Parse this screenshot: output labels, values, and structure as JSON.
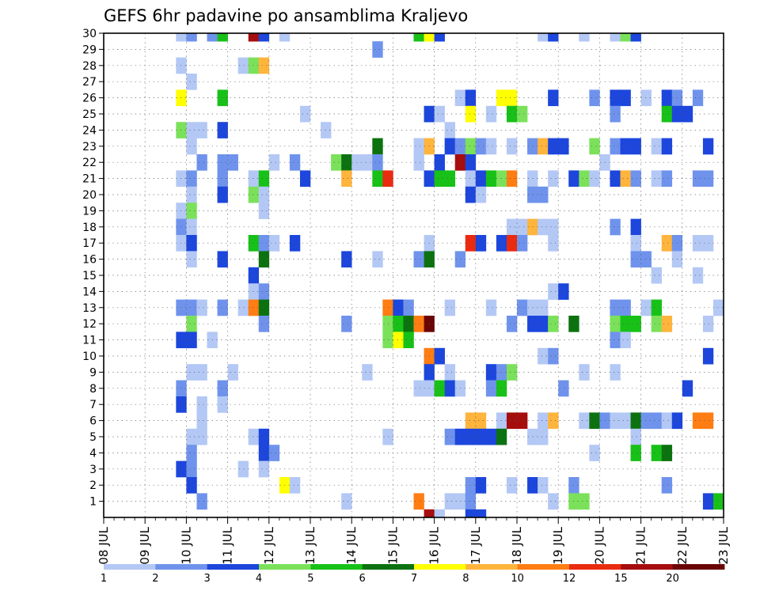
{
  "chart_data": {
    "type": "heatmap",
    "title": "GEFS 6hr padavine po ansamblima Kraljevo",
    "xlabel": "",
    "ylabel": "",
    "x_ticks": [
      "08 JUL",
      "09 JUL",
      "10 JUL",
      "11 JUL",
      "12 JUL",
      "13 JUL",
      "14 JUL",
      "15 JUL",
      "16 JUL",
      "17 JUL",
      "18 JUL",
      "19 JUL",
      "20 JUL",
      "21 JUL",
      "22 JUL",
      "23 JUL"
    ],
    "x_range_days": [
      8,
      23
    ],
    "x_step_hours": 6,
    "y_ticks": [
      1,
      2,
      3,
      4,
      5,
      6,
      7,
      8,
      9,
      10,
      11,
      12,
      13,
      14,
      15,
      16,
      17,
      18,
      19,
      20,
      21,
      22,
      23,
      24,
      25,
      26,
      27,
      28,
      29,
      30
    ],
    "y_range": [
      0,
      30
    ],
    "grid": true,
    "legend": {
      "position": "bottom",
      "labels": [
        "1",
        "2",
        "3",
        "4",
        "5",
        "6",
        "7",
        "8",
        "10",
        "12",
        "15",
        "20"
      ],
      "colors": [
        "#b4c8f5",
        "#6f93ec",
        "#1c46dc",
        "#7be15a",
        "#17c117",
        "#0c7210",
        "#ffff00",
        "#ffb43c",
        "#ff7d13",
        "#ea2b10",
        "#a60d0d",
        "#6b0505"
      ]
    },
    "cells_note": "each cell: [member (row), day-of-July at start of 6h step, category index 1..12 (see legend.labels)]",
    "cells": [
      [
        30,
        9.75,
        1
      ],
      [
        30,
        10,
        2
      ],
      [
        30,
        10.5,
        2
      ],
      [
        30,
        10.75,
        5
      ],
      [
        30,
        11.5,
        11
      ],
      [
        30,
        11.75,
        3
      ],
      [
        30,
        12.25,
        1
      ],
      [
        30,
        15.5,
        5
      ],
      [
        30,
        15.75,
        7
      ],
      [
        30,
        16,
        3
      ],
      [
        30,
        18.5,
        1
      ],
      [
        30,
        18.75,
        3
      ],
      [
        30,
        19.5,
        1
      ],
      [
        30,
        20.25,
        1
      ],
      [
        30,
        20.5,
        4
      ],
      [
        30,
        20.75,
        3
      ],
      [
        29,
        14.5,
        2
      ],
      [
        28,
        9.75,
        1
      ],
      [
        28,
        11.25,
        1
      ],
      [
        28,
        11.5,
        4
      ],
      [
        28,
        11.75,
        8
      ],
      [
        27,
        10,
        1
      ],
      [
        26,
        9.75,
        7
      ],
      [
        26,
        10.75,
        5
      ],
      [
        26,
        16.5,
        1
      ],
      [
        26,
        16.75,
        3
      ],
      [
        26,
        17.5,
        7
      ],
      [
        26,
        17.75,
        7
      ],
      [
        26,
        18.75,
        3
      ],
      [
        26,
        19.75,
        2
      ],
      [
        26,
        20.25,
        3
      ],
      [
        26,
        20.5,
        3
      ],
      [
        26,
        21,
        1
      ],
      [
        26,
        21.5,
        3
      ],
      [
        26,
        21.75,
        2
      ],
      [
        26,
        22.25,
        2
      ],
      [
        25,
        12.75,
        1
      ],
      [
        25,
        15.75,
        3
      ],
      [
        25,
        16,
        1
      ],
      [
        25,
        16.75,
        7
      ],
      [
        25,
        17.25,
        1
      ],
      [
        25,
        17.75,
        5
      ],
      [
        25,
        18,
        4
      ],
      [
        25,
        20.25,
        2
      ],
      [
        25,
        21.5,
        5
      ],
      [
        25,
        21.75,
        3
      ],
      [
        25,
        22,
        3
      ],
      [
        24,
        9.75,
        4
      ],
      [
        24,
        10,
        1
      ],
      [
        24,
        10.25,
        1
      ],
      [
        24,
        10.75,
        3
      ],
      [
        24,
        13.25,
        1
      ],
      [
        24,
        16.25,
        1
      ],
      [
        23,
        10,
        1
      ],
      [
        23,
        14.5,
        6
      ],
      [
        23,
        15.5,
        1
      ],
      [
        23,
        15.75,
        8
      ],
      [
        23,
        16.25,
        3
      ],
      [
        23,
        16.5,
        2
      ],
      [
        23,
        16.75,
        4
      ],
      [
        23,
        17,
        2
      ],
      [
        23,
        17.25,
        1
      ],
      [
        23,
        17.75,
        1
      ],
      [
        23,
        18.25,
        2
      ],
      [
        23,
        18.5,
        8
      ],
      [
        23,
        18.75,
        3
      ],
      [
        23,
        19,
        3
      ],
      [
        23,
        19.75,
        4
      ],
      [
        23,
        20.25,
        2
      ],
      [
        23,
        20.5,
        3
      ],
      [
        23,
        20.75,
        3
      ],
      [
        23,
        21.25,
        1
      ],
      [
        23,
        21.5,
        3
      ],
      [
        23,
        22.5,
        3
      ],
      [
        22,
        10.25,
        2
      ],
      [
        22,
        10.75,
        2
      ],
      [
        22,
        11,
        2
      ],
      [
        22,
        12,
        1
      ],
      [
        22,
        12.5,
        2
      ],
      [
        22,
        13.5,
        4
      ],
      [
        22,
        13.75,
        6
      ],
      [
        22,
        14,
        1
      ],
      [
        22,
        14.25,
        1
      ],
      [
        22,
        14.5,
        2
      ],
      [
        22,
        15.5,
        1
      ],
      [
        22,
        16,
        3
      ],
      [
        22,
        16.5,
        11
      ],
      [
        22,
        16.75,
        3
      ],
      [
        22,
        20,
        1
      ],
      [
        21,
        9.75,
        1
      ],
      [
        21,
        10,
        2
      ],
      [
        21,
        10.75,
        2
      ],
      [
        21,
        11.5,
        1
      ],
      [
        21,
        11.75,
        5
      ],
      [
        21,
        12.75,
        3
      ],
      [
        21,
        13.75,
        8
      ],
      [
        21,
        14.5,
        5
      ],
      [
        21,
        14.75,
        10
      ],
      [
        21,
        15.75,
        3
      ],
      [
        21,
        16,
        5
      ],
      [
        21,
        16.25,
        5
      ],
      [
        21,
        16.75,
        1
      ],
      [
        21,
        17,
        3
      ],
      [
        21,
        17.25,
        5
      ],
      [
        21,
        17.5,
        4
      ],
      [
        21,
        17.75,
        9
      ],
      [
        21,
        18.25,
        1
      ],
      [
        21,
        18.75,
        1
      ],
      [
        21,
        19.25,
        3
      ],
      [
        21,
        19.5,
        4
      ],
      [
        21,
        19.75,
        1
      ],
      [
        21,
        20.25,
        3
      ],
      [
        21,
        20.5,
        8
      ],
      [
        21,
        20.75,
        2
      ],
      [
        21,
        21.25,
        1
      ],
      [
        21,
        21.5,
        2
      ],
      [
        21,
        22.25,
        2
      ],
      [
        21,
        22.5,
        2
      ],
      [
        20,
        10,
        1
      ],
      [
        20,
        10.75,
        3
      ],
      [
        20,
        11.5,
        4
      ],
      [
        20,
        11.75,
        1
      ],
      [
        20,
        16.75,
        3
      ],
      [
        20,
        17,
        1
      ],
      [
        20,
        18.25,
        2
      ],
      [
        20,
        18.5,
        2
      ],
      [
        19,
        9.75,
        1
      ],
      [
        19,
        10,
        4
      ],
      [
        19,
        11.75,
        1
      ],
      [
        18,
        9.75,
        2
      ],
      [
        18,
        10,
        1
      ],
      [
        18,
        17.75,
        1
      ],
      [
        18,
        18,
        1
      ],
      [
        18,
        18.25,
        8
      ],
      [
        18,
        18.5,
        1
      ],
      [
        18,
        18.75,
        1
      ],
      [
        18,
        20.25,
        2
      ],
      [
        18,
        20.75,
        3
      ],
      [
        17,
        9.75,
        1
      ],
      [
        17,
        10,
        3
      ],
      [
        17,
        11.5,
        5
      ],
      [
        17,
        11.75,
        2
      ],
      [
        17,
        12,
        1
      ],
      [
        17,
        12.5,
        3
      ],
      [
        17,
        15.75,
        1
      ],
      [
        17,
        16.75,
        10
      ],
      [
        17,
        17,
        3
      ],
      [
        17,
        17.5,
        3
      ],
      [
        17,
        17.75,
        10
      ],
      [
        17,
        18,
        2
      ],
      [
        17,
        18.75,
        1
      ],
      [
        17,
        20.75,
        1
      ],
      [
        17,
        21.5,
        8
      ],
      [
        17,
        21.75,
        2
      ],
      [
        17,
        22.25,
        1
      ],
      [
        17,
        22.5,
        1
      ],
      [
        16,
        10,
        1
      ],
      [
        16,
        10.75,
        3
      ],
      [
        16,
        11.75,
        6
      ],
      [
        16,
        13.75,
        3
      ],
      [
        16,
        14.5,
        1
      ],
      [
        16,
        15.5,
        2
      ],
      [
        16,
        15.75,
        6
      ],
      [
        16,
        16.5,
        2
      ],
      [
        16,
        20.75,
        2
      ],
      [
        16,
        21,
        2
      ],
      [
        16,
        21.75,
        1
      ],
      [
        15,
        11.5,
        3
      ],
      [
        15,
        21.25,
        1
      ],
      [
        15,
        22.25,
        1
      ],
      [
        14,
        11.5,
        1
      ],
      [
        14,
        11.75,
        2
      ],
      [
        14,
        18.75,
        1
      ],
      [
        14,
        19,
        3
      ],
      [
        13,
        9.75,
        2
      ],
      [
        13,
        10,
        2
      ],
      [
        13,
        10.25,
        1
      ],
      [
        13,
        10.75,
        2
      ],
      [
        13,
        11.25,
        1
      ],
      [
        13,
        11.5,
        9
      ],
      [
        13,
        11.75,
        6
      ],
      [
        13,
        14.75,
        9
      ],
      [
        13,
        15,
        3
      ],
      [
        13,
        15.25,
        2
      ],
      [
        13,
        16.25,
        1
      ],
      [
        13,
        17.25,
        1
      ],
      [
        13,
        18,
        2
      ],
      [
        13,
        18.25,
        1
      ],
      [
        13,
        18.5,
        1
      ],
      [
        13,
        20.25,
        2
      ],
      [
        13,
        20.5,
        2
      ],
      [
        13,
        21,
        1
      ],
      [
        13,
        21.25,
        5
      ],
      [
        13,
        22.75,
        1
      ],
      [
        12,
        10,
        4
      ],
      [
        12,
        11.75,
        2
      ],
      [
        12,
        13.75,
        2
      ],
      [
        12,
        14.75,
        4
      ],
      [
        12,
        15,
        5
      ],
      [
        12,
        15.25,
        6
      ],
      [
        12,
        15.5,
        9
      ],
      [
        12,
        15.75,
        12
      ],
      [
        12,
        17.75,
        2
      ],
      [
        12,
        18.25,
        3
      ],
      [
        12,
        18.5,
        3
      ],
      [
        12,
        18.75,
        4
      ],
      [
        12,
        19.25,
        6
      ],
      [
        12,
        20.25,
        4
      ],
      [
        12,
        20.5,
        5
      ],
      [
        12,
        20.75,
        5
      ],
      [
        12,
        21.25,
        4
      ],
      [
        12,
        21.5,
        8
      ],
      [
        12,
        22.5,
        1
      ],
      [
        11,
        9.75,
        3
      ],
      [
        11,
        10,
        3
      ],
      [
        11,
        10.5,
        1
      ],
      [
        11,
        14.75,
        4
      ],
      [
        11,
        15,
        7
      ],
      [
        11,
        15.25,
        5
      ],
      [
        11,
        20.25,
        2
      ],
      [
        11,
        20.5,
        1
      ],
      [
        10,
        15.75,
        9
      ],
      [
        10,
        16,
        3
      ],
      [
        10,
        18.5,
        1
      ],
      [
        10,
        18.75,
        2
      ],
      [
        10,
        22.5,
        3
      ],
      [
        9,
        10,
        1
      ],
      [
        9,
        10.25,
        1
      ],
      [
        9,
        11,
        1
      ],
      [
        9,
        14.25,
        1
      ],
      [
        9,
        15.75,
        3
      ],
      [
        9,
        16.25,
        1
      ],
      [
        9,
        17.25,
        3
      ],
      [
        9,
        17.5,
        2
      ],
      [
        9,
        17.75,
        4
      ],
      [
        9,
        19.5,
        1
      ],
      [
        9,
        20.25,
        1
      ],
      [
        8,
        9.75,
        2
      ],
      [
        8,
        10.75,
        2
      ],
      [
        8,
        15.5,
        1
      ],
      [
        8,
        15.75,
        1
      ],
      [
        8,
        16,
        5
      ],
      [
        8,
        16.25,
        3
      ],
      [
        8,
        16.5,
        1
      ],
      [
        8,
        17.25,
        2
      ],
      [
        8,
        17.5,
        5
      ],
      [
        8,
        19,
        2
      ],
      [
        8,
        22,
        3
      ],
      [
        7,
        9.75,
        3
      ],
      [
        7,
        10.25,
        1
      ],
      [
        7,
        10.75,
        1
      ],
      [
        6,
        10.25,
        1
      ],
      [
        6,
        16.75,
        8
      ],
      [
        6,
        17,
        8
      ],
      [
        6,
        17.5,
        1
      ],
      [
        6,
        17.75,
        11
      ],
      [
        6,
        18,
        11
      ],
      [
        6,
        18.5,
        1
      ],
      [
        6,
        18.75,
        8
      ],
      [
        6,
        19.5,
        1
      ],
      [
        6,
        19.75,
        6
      ],
      [
        6,
        20,
        2
      ],
      [
        6,
        20.25,
        1
      ],
      [
        6,
        20.5,
        1
      ],
      [
        6,
        20.75,
        6
      ],
      [
        6,
        21,
        2
      ],
      [
        6,
        21.25,
        2
      ],
      [
        6,
        21.5,
        1
      ],
      [
        6,
        21.75,
        3
      ],
      [
        6,
        22.25,
        9
      ],
      [
        6,
        22.5,
        9
      ],
      [
        5,
        10,
        1
      ],
      [
        5,
        10.25,
        1
      ],
      [
        5,
        11.5,
        1
      ],
      [
        5,
        11.75,
        3
      ],
      [
        5,
        14.75,
        1
      ],
      [
        5,
        16.25,
        2
      ],
      [
        5,
        16.5,
        3
      ],
      [
        5,
        16.75,
        3
      ],
      [
        5,
        17,
        3
      ],
      [
        5,
        17.25,
        3
      ],
      [
        5,
        17.5,
        6
      ],
      [
        5,
        18.25,
        1
      ],
      [
        5,
        18.5,
        1
      ],
      [
        5,
        20.75,
        1
      ],
      [
        4,
        10,
        2
      ],
      [
        4,
        11.75,
        3
      ],
      [
        4,
        12,
        2
      ],
      [
        4,
        19.75,
        1
      ],
      [
        4,
        20.75,
        5
      ],
      [
        4,
        21.25,
        5
      ],
      [
        4,
        21.5,
        6
      ],
      [
        3,
        9.75,
        3
      ],
      [
        3,
        10,
        2
      ],
      [
        3,
        11.25,
        1
      ],
      [
        3,
        11.75,
        1
      ],
      [
        2,
        10,
        3
      ],
      [
        2,
        12.25,
        7
      ],
      [
        2,
        12.5,
        1
      ],
      [
        2,
        16.75,
        2
      ],
      [
        2,
        17,
        3
      ],
      [
        2,
        17.75,
        1
      ],
      [
        2,
        18.25,
        3
      ],
      [
        2,
        18.5,
        1
      ],
      [
        2,
        19.25,
        2
      ],
      [
        2,
        21.5,
        2
      ],
      [
        1,
        10.25,
        2
      ],
      [
        1,
        13.75,
        1
      ],
      [
        1,
        15.5,
        9
      ],
      [
        1,
        16.25,
        1
      ],
      [
        1,
        16.5,
        1
      ],
      [
        1,
        16.75,
        2
      ],
      [
        1,
        18.75,
        1
      ],
      [
        1,
        19.25,
        4
      ],
      [
        1,
        19.5,
        4
      ],
      [
        1,
        22.5,
        3
      ],
      [
        1,
        22.75,
        5
      ],
      [
        0,
        15.75,
        11
      ],
      [
        0,
        16,
        1
      ],
      [
        0,
        16.75,
        3
      ],
      [
        0,
        17,
        3
      ]
    ]
  }
}
